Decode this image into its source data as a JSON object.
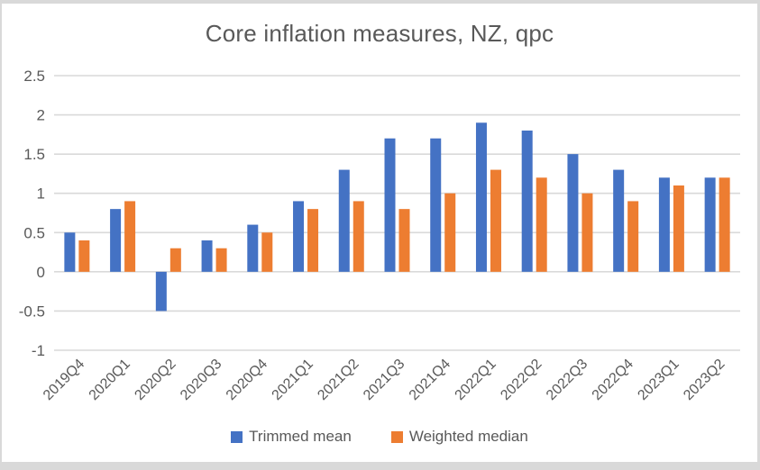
{
  "window": {
    "frame_color": "#d9d9d9",
    "background_color": "#ffffff"
  },
  "chart_data": {
    "type": "bar",
    "title": "Core inflation measures, NZ, qpc",
    "xlabel": "",
    "ylabel": "",
    "categories": [
      "2019Q4",
      "2020Q1",
      "2020Q2",
      "2020Q3",
      "2020Q4",
      "2021Q1",
      "2021Q2",
      "2021Q3",
      "2021Q4",
      "2022Q1",
      "2022Q2",
      "2022Q3",
      "2022Q4",
      "2023Q1",
      "2023Q2"
    ],
    "series": [
      {
        "name": "Trimmed mean",
        "color": "#4472C4",
        "values": [
          0.5,
          0.8,
          -0.5,
          0.4,
          0.6,
          0.9,
          1.3,
          1.7,
          1.7,
          1.9,
          1.8,
          1.5,
          1.3,
          1.2,
          1.2
        ]
      },
      {
        "name": "Weighted median",
        "color": "#ED7D31",
        "values": [
          0.4,
          0.9,
          0.3,
          0.3,
          0.5,
          0.8,
          0.9,
          0.8,
          1.0,
          1.3,
          1.2,
          1.0,
          0.9,
          1.1,
          1.2
        ]
      }
    ],
    "ylim": [
      -1,
      2.5
    ],
    "yticks": [
      2.5,
      2,
      1.5,
      1,
      0.5,
      0,
      -0.5,
      -1
    ],
    "ytick_labels": [
      "2.5",
      "2",
      "1.5",
      "1",
      "0.5",
      "0",
      "-0.5",
      "-1"
    ],
    "grid": true,
    "legend_position": "bottom",
    "gridline_color": "#d9d9d9",
    "text_color": "#595959"
  }
}
